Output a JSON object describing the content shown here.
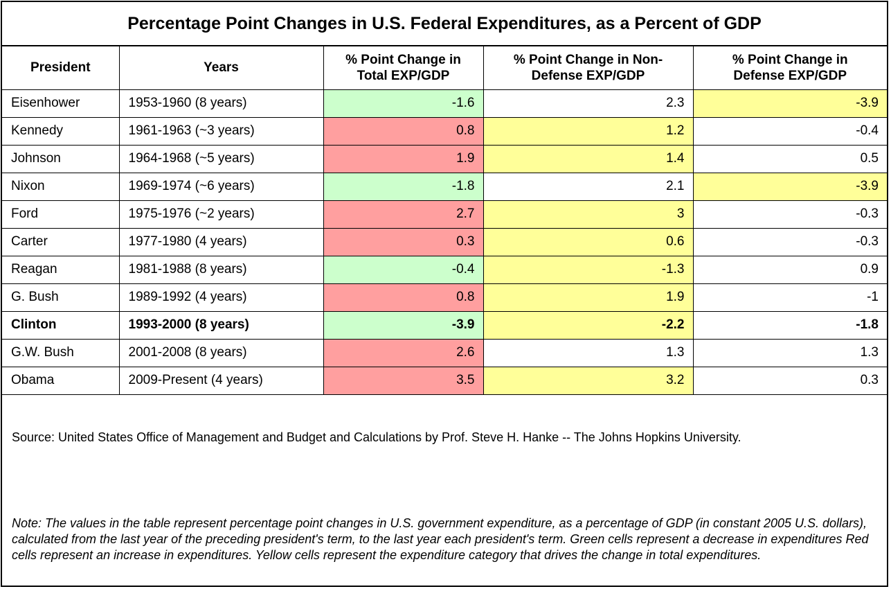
{
  "colors": {
    "decrease_green": "#ccffcc",
    "increase_red": "#ff9f9f",
    "driver_yellow": "#ffff99",
    "none_white": "#ffffff"
  },
  "chart_data": {
    "type": "table",
    "title": "Percentage Point Changes in U.S. Federal Expenditures, as a Percent of GDP",
    "columns": [
      "President",
      "Years",
      "% Point Change in Total EXP/GDP",
      "% Point Change in Non-Defense EXP/GDP",
      "% Point Change in Defense EXP/GDP"
    ],
    "rows": [
      {
        "president": "Eisenhower",
        "years": "1953-1960 (8 years)",
        "total": "-1.6",
        "non_defense": "2.3",
        "defense": "-3.9",
        "fills": [
          "green",
          "white",
          "yellow"
        ],
        "bold": false
      },
      {
        "president": "Kennedy",
        "years": "1961-1963 (~3 years)",
        "total": "0.8",
        "non_defense": "1.2",
        "defense": "-0.4",
        "fills": [
          "red",
          "yellow",
          "white"
        ],
        "bold": false
      },
      {
        "president": "Johnson",
        "years": "1964-1968 (~5 years)",
        "total": "1.9",
        "non_defense": "1.4",
        "defense": "0.5",
        "fills": [
          "red",
          "yellow",
          "white"
        ],
        "bold": false
      },
      {
        "president": "Nixon",
        "years": "1969-1974 (~6 years)",
        "total": "-1.8",
        "non_defense": "2.1",
        "defense": "-3.9",
        "fills": [
          "green",
          "white",
          "yellow"
        ],
        "bold": false
      },
      {
        "president": "Ford",
        "years": "1975-1976 (~2 years)",
        "total": "2.7",
        "non_defense": "3",
        "defense": "-0.3",
        "fills": [
          "red",
          "yellow",
          "white"
        ],
        "bold": false
      },
      {
        "president": "Carter",
        "years": "1977-1980 (4 years)",
        "total": "0.3",
        "non_defense": "0.6",
        "defense": "-0.3",
        "fills": [
          "red",
          "yellow",
          "white"
        ],
        "bold": false
      },
      {
        "president": "Reagan",
        "years": "1981-1988 (8 years)",
        "total": "-0.4",
        "non_defense": "-1.3",
        "defense": "0.9",
        "fills": [
          "green",
          "yellow",
          "white"
        ],
        "bold": false
      },
      {
        "president": "G. Bush",
        "years": "1989-1992 (4 years)",
        "total": "0.8",
        "non_defense": "1.9",
        "defense": "-1",
        "fills": [
          "red",
          "yellow",
          "white"
        ],
        "bold": false
      },
      {
        "president": "Clinton",
        "years": "1993-2000 (8 years)",
        "total": "-3.9",
        "non_defense": "-2.2",
        "defense": "-1.8",
        "fills": [
          "green",
          "yellow",
          "white"
        ],
        "bold": true
      },
      {
        "president": "G.W. Bush",
        "years": "2001-2008 (8 years)",
        "total": "2.6",
        "non_defense": "1.3",
        "defense": "1.3",
        "fills": [
          "red",
          "white",
          "white"
        ],
        "bold": false
      },
      {
        "president": "Obama",
        "years": "2009-Present (4 years)",
        "total": "3.5",
        "non_defense": "3.2",
        "defense": "0.3",
        "fills": [
          "red",
          "yellow",
          "white"
        ],
        "bold": false
      }
    ],
    "source": "Source: United States Office of Management and Budget and Calculations by Prof. Steve H. Hanke -- The Johns Hopkins University.",
    "note": "Note: The values in the table represent percentage point changes in U.S. government expenditure, as a percentage of GDP (in constant 2005 U.S. dollars), calculated from the last year of the preceding president's term, to the last year each president's term. Green cells represent a decrease in expenditures Red cells represent an increase in expenditures. Yellow cells represent the expenditure category that drives the change in total expenditures."
  }
}
